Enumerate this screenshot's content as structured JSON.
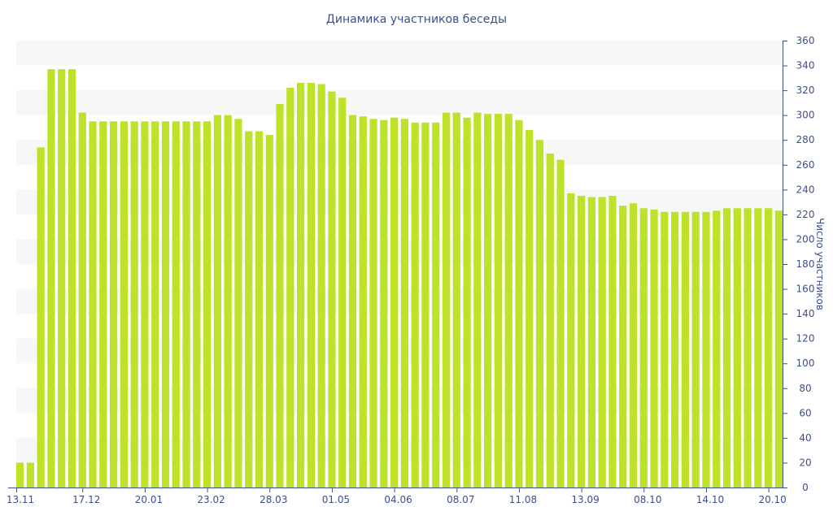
{
  "chart_data": {
    "type": "bar",
    "title": "Динамика участников беседы",
    "xlabel": "",
    "ylabel": "Число участников",
    "ylim": [
      0,
      360
    ],
    "yticks": [
      0,
      20,
      40,
      60,
      80,
      100,
      120,
      140,
      160,
      180,
      200,
      220,
      240,
      260,
      280,
      300,
      320,
      340,
      360
    ],
    "y_axis_position": "right",
    "grid": "alternating horizontal bands",
    "bar_color": "#bde22a",
    "band_color": "#f7f7f7",
    "text_color": "#3c4f8c",
    "xtick_labels": [
      {
        "label": "13.11",
        "index": 0
      },
      {
        "label": "17.12",
        "index": 6
      },
      {
        "label": "20.01",
        "index": 12
      },
      {
        "label": "23.02",
        "index": 18
      },
      {
        "label": "28.03",
        "index": 24
      },
      {
        "label": "01.05",
        "index": 30
      },
      {
        "label": "04.06",
        "index": 36
      },
      {
        "label": "08.07",
        "index": 42
      },
      {
        "label": "11.08",
        "index": 48
      },
      {
        "label": "13.09",
        "index": 54
      },
      {
        "label": "08.10",
        "index": 60
      },
      {
        "label": "14.10",
        "index": 66
      },
      {
        "label": "20.10",
        "index": 72
      }
    ],
    "values": [
      20,
      20,
      274,
      337,
      337,
      337,
      302,
      295,
      295,
      295,
      295,
      295,
      295,
      295,
      295,
      295,
      295,
      295,
      295,
      300,
      300,
      297,
      287,
      287,
      284,
      309,
      322,
      326,
      326,
      325,
      319,
      314,
      300,
      299,
      297,
      296,
      298,
      297,
      294,
      294,
      294,
      302,
      302,
      298,
      302,
      301,
      301,
      301,
      296,
      288,
      280,
      269,
      264,
      237,
      235,
      234,
      234,
      235,
      227,
      229,
      225,
      224,
      222,
      222,
      222,
      222,
      222,
      223,
      225,
      225,
      225,
      225,
      225,
      223
    ]
  }
}
